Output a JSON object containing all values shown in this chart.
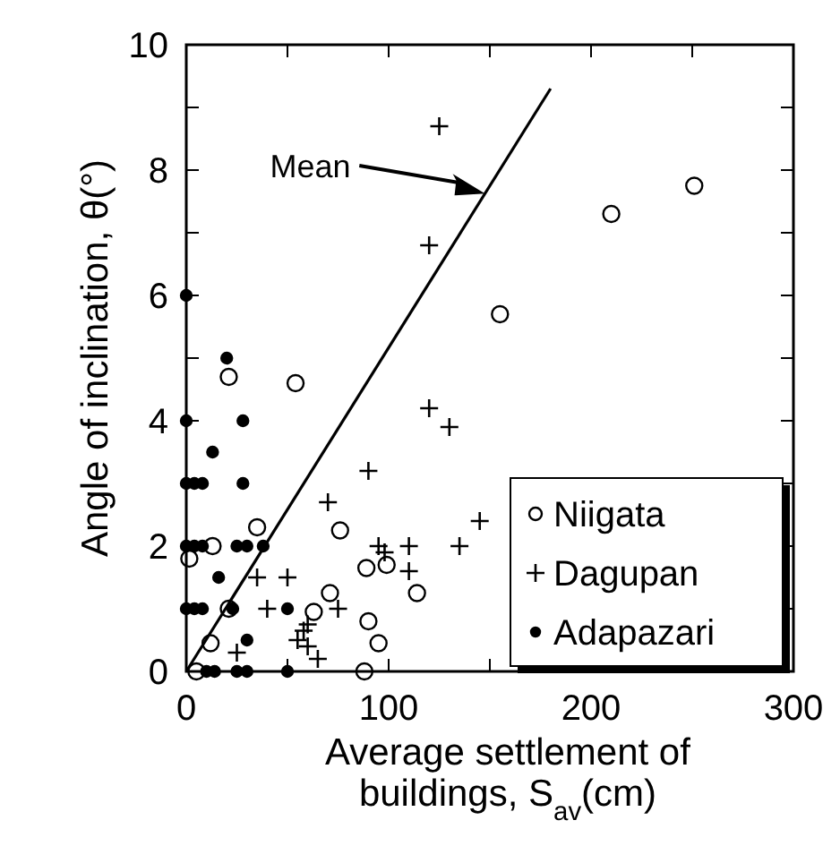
{
  "chart_data": {
    "type": "scatter",
    "xlabel": "Average settlement of buildings, S$_{av}$(cm)",
    "ylabel": "Angle of inclination, θ(°)",
    "xlim": [
      0,
      300
    ],
    "xticks": [
      0,
      {
        "value": 50,
        "label": null
      },
      100,
      {
        "value": 150,
        "label": null
      },
      200,
      {
        "value": 250,
        "label": null
      },
      300
    ],
    "ylim": [
      0,
      10
    ],
    "yticks": [
      0,
      {
        "value": 1,
        "label": null
      },
      2,
      {
        "value": 3,
        "label": null
      },
      4,
      {
        "value": 5,
        "label": null
      },
      6,
      {
        "value": 7,
        "label": null
      },
      8,
      {
        "value": 9,
        "label": null
      },
      10
    ],
    "grid": false,
    "legend": "bottom right",
    "series": [
      {
        "name": "Niigata",
        "color": "#000000",
        "marker": "circle",
        "x": [
          21,
          54,
          35,
          76,
          13,
          1.5,
          89,
          99,
          114,
          71,
          21,
          63,
          90,
          12,
          95,
          5,
          88,
          155,
          210,
          251
        ],
        "values": [
          4.7,
          4.6,
          2.3,
          2.25,
          2,
          1.8,
          1.65,
          1.7,
          1.25,
          1.25,
          1,
          0.95,
          0.8,
          0.45,
          0.45,
          0,
          0,
          5.7,
          7.3,
          7.75
        ]
      },
      {
        "name": "Dagupan",
        "color": "#000000",
        "marker": "cross",
        "x": [
          125,
          120,
          120,
          130,
          90,
          70,
          145,
          135,
          95,
          110,
          98,
          110,
          35,
          50,
          40,
          75,
          60,
          58,
          55,
          60,
          65,
          25
        ],
        "values": [
          8.7,
          6.8,
          4.2,
          3.9,
          3.2,
          2.7,
          2.4,
          2,
          2,
          2,
          1.9,
          1.6,
          1.5,
          1.5,
          1,
          1,
          0.75,
          0.65,
          0.5,
          0.4,
          0.2,
          0.3
        ]
      },
      {
        "name": "Adapazari",
        "color": "#000000",
        "marker": "circle",
        "x": [
          0,
          20,
          0,
          28,
          13,
          0,
          4,
          8,
          28,
          0,
          4,
          8,
          25,
          30,
          38,
          16,
          0,
          4,
          8,
          23,
          50,
          30,
          10,
          14,
          25,
          30,
          50
        ],
        "values": [
          6,
          5,
          4,
          4,
          3.5,
          3,
          3,
          3,
          3,
          2,
          2,
          2,
          2,
          2,
          2,
          1.5,
          1,
          1,
          1,
          1,
          1,
          0.5,
          0,
          0,
          0,
          0,
          0
        ]
      },
      {
        "type": "line",
        "color": "#000000",
        "marker": "none",
        "x": [
          0,
          180
        ],
        "values": [
          0,
          9.3
        ]
      }
    ],
    "annotations": [
      "Mean"
    ]
  }
}
